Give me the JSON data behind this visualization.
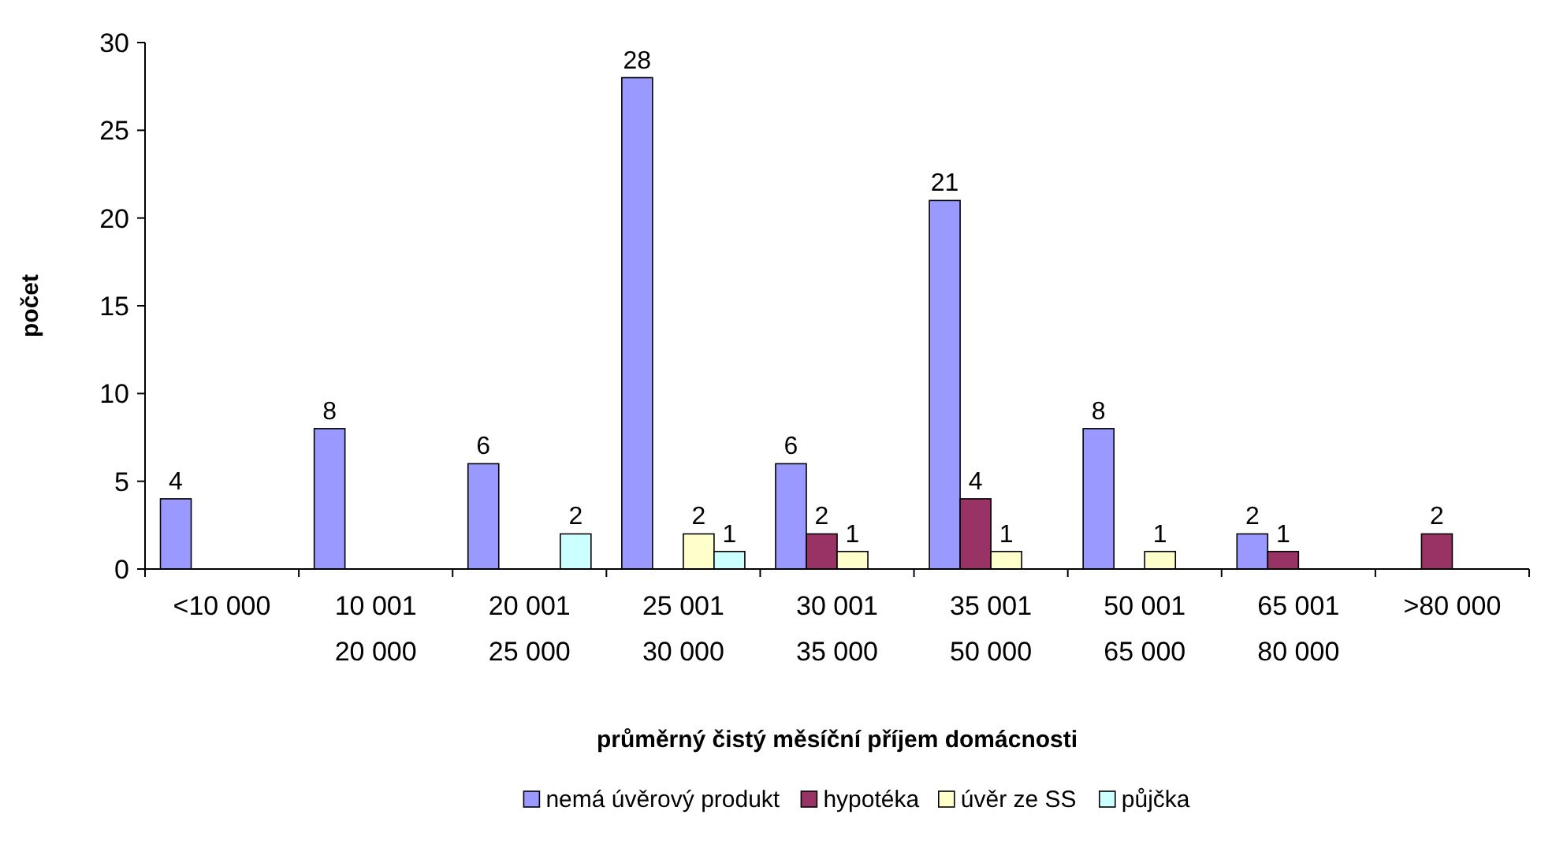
{
  "chart_data": {
    "type": "bar",
    "xlabel": "průměrný čistý měsíční příjem domácnosti",
    "ylabel": "počet",
    "categories": [
      "<10 000",
      "10 001\n20 000",
      "20 001\n25 000",
      "25 001\n30 000",
      "30 001\n35 000",
      "35 001\n50 000",
      "50 001\n65 000",
      "65 001\n80 000",
      ">80 000"
    ],
    "series": [
      {
        "name": "nemá úvěrový produkt",
        "color": "#9999ff",
        "values": [
          4,
          8,
          6,
          28,
          6,
          21,
          8,
          2,
          null
        ]
      },
      {
        "name": "hypotéka",
        "color": "#993366",
        "values": [
          null,
          null,
          null,
          null,
          2,
          4,
          null,
          1,
          2
        ]
      },
      {
        "name": "úvěr ze SS",
        "color": "#ffffcc",
        "values": [
          null,
          null,
          null,
          2,
          1,
          1,
          1,
          null,
          null
        ]
      },
      {
        "name": "půjčka",
        "color": "#ccffff",
        "values": [
          null,
          null,
          2,
          1,
          null,
          null,
          null,
          null,
          null
        ]
      }
    ],
    "ylim": [
      0,
      30
    ],
    "yticks": [
      0,
      5,
      10,
      15,
      20,
      25,
      30
    ],
    "data_labels": true,
    "legend": "bottom",
    "grid": false
  }
}
